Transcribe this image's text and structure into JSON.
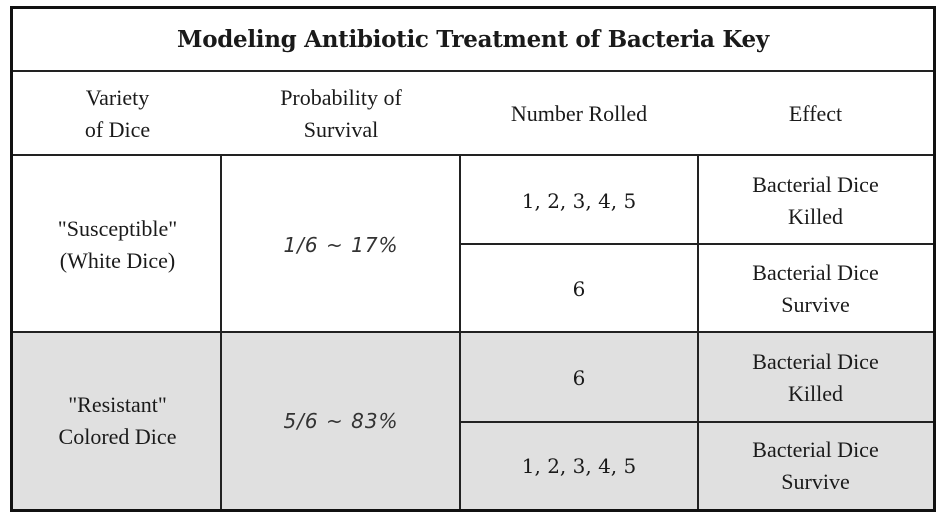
{
  "table": {
    "title": "Modeling Antibiotic Treatment of Bacteria Key",
    "headers": [
      "Variety\nof Dice",
      "Probability of\nSurvival",
      "Number Rolled",
      "Effect"
    ],
    "groups": [
      {
        "variety": "\"Susceptible\"\n(White Dice)",
        "probability": "1/6 ~ 17%",
        "rows": [
          {
            "rolled": "1, 2, 3, 4, 5",
            "effect": "Bacterial Dice\nKilled"
          },
          {
            "rolled": "6",
            "effect": "Bacterial Dice\nSurvive"
          }
        ]
      },
      {
        "variety": "\"Resistant\"\nColored Dice",
        "probability": "5/6 ~ 83%",
        "rows": [
          {
            "rolled": "6",
            "effect": "Bacterial Dice\nKilled"
          },
          {
            "rolled": "1, 2, 3, 4, 5",
            "effect": "Bacterial Dice\nSurvive"
          }
        ]
      }
    ],
    "colors": {
      "resistant_background": "#e0e0e0",
      "border": "#111111"
    }
  }
}
